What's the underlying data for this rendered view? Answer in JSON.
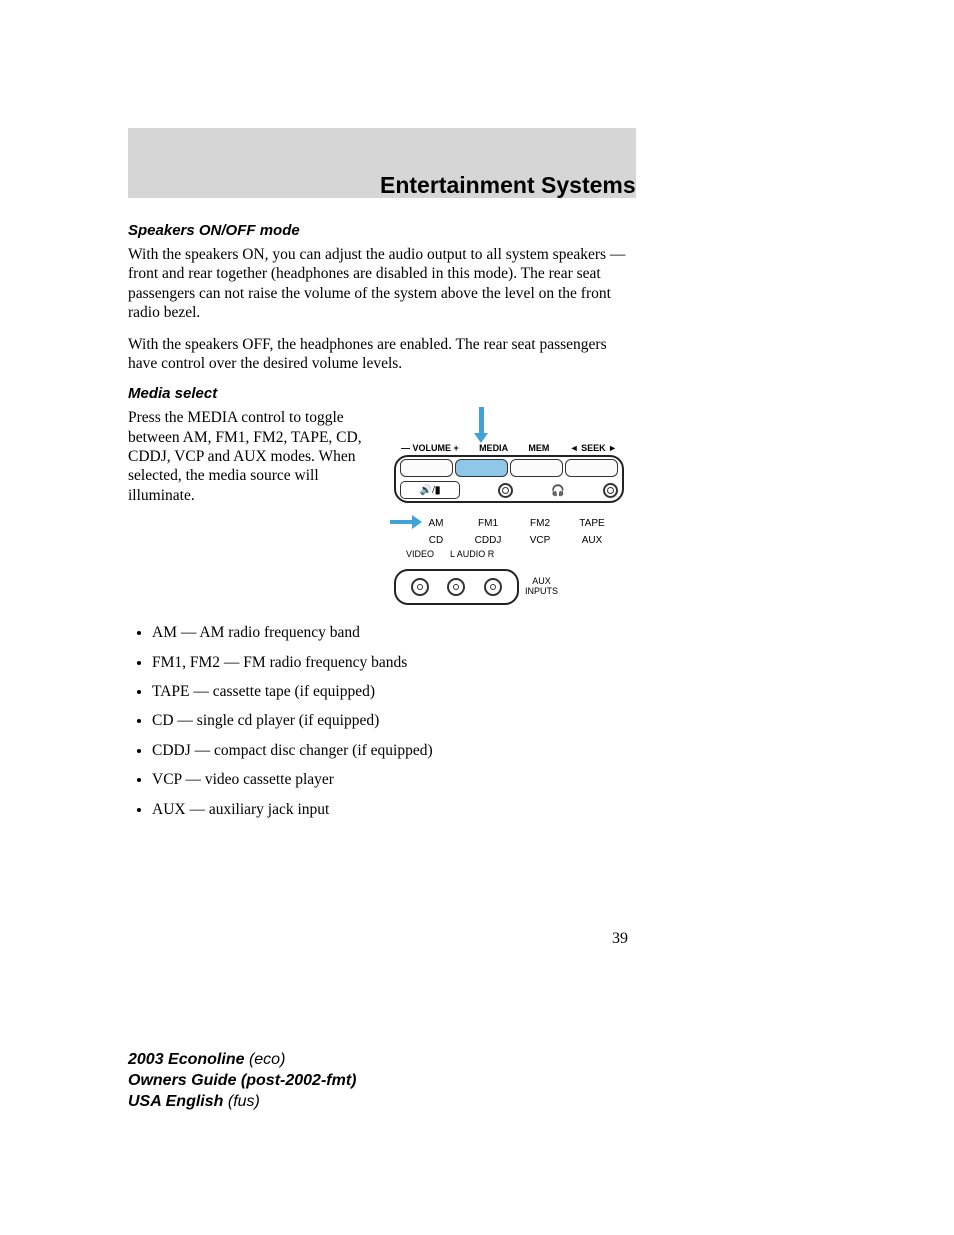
{
  "header": {
    "title": "Entertainment Systems"
  },
  "section1": {
    "heading": "Speakers ON/OFF mode",
    "p1": "With the speakers ON, you can adjust the audio output to all system speakers — front and rear together (headphones are disabled in this mode). The rear seat passengers can not raise the volume of the system above the level on the front radio bezel.",
    "p2": "With the speakers OFF, the headphones are enabled. The rear seat passengers have control over the desired volume levels."
  },
  "section2": {
    "heading": "Media select",
    "p1": "Press the MEDIA control to toggle between AM, FM1, FM2, TAPE, CD, CDDJ, VCP and AUX modes. When selected, the media source will illuminate."
  },
  "panel": {
    "labels": {
      "volume": "— VOLUME +",
      "media": "MEDIA",
      "mem": "MEM",
      "seek": "◄  SEEK  ►"
    },
    "speaker_icon": "🔊/🔇",
    "headphone_icon": "🎧",
    "highlight_button": "media",
    "arrow_color": "#3fa3d8"
  },
  "media_grid": {
    "row1": [
      "AM",
      "FM1",
      "FM2",
      "TAPE"
    ],
    "row2": [
      "CD",
      "CDDJ",
      "VCP",
      "AUX"
    ]
  },
  "aux": {
    "labels": [
      "VIDEO",
      "L AUDIO R"
    ],
    "text1": "AUX",
    "text2": "INPUTS"
  },
  "bullets": [
    "AM — AM radio frequency band",
    "FM1, FM2 — FM radio frequency bands",
    "TAPE — cassette tape (if equipped)",
    "CD — single cd player (if equipped)",
    "CDDJ — compact disc changer (if equipped)",
    "VCP — video cassette player",
    "AUX — auxiliary jack input"
  ],
  "page_number": "39",
  "footer": {
    "l1a": "2003 Econoline ",
    "l1b": "(eco)",
    "l2": "Owners Guide (post-2002-fmt)",
    "l3a": "USA English ",
    "l3b": "(fus)"
  }
}
